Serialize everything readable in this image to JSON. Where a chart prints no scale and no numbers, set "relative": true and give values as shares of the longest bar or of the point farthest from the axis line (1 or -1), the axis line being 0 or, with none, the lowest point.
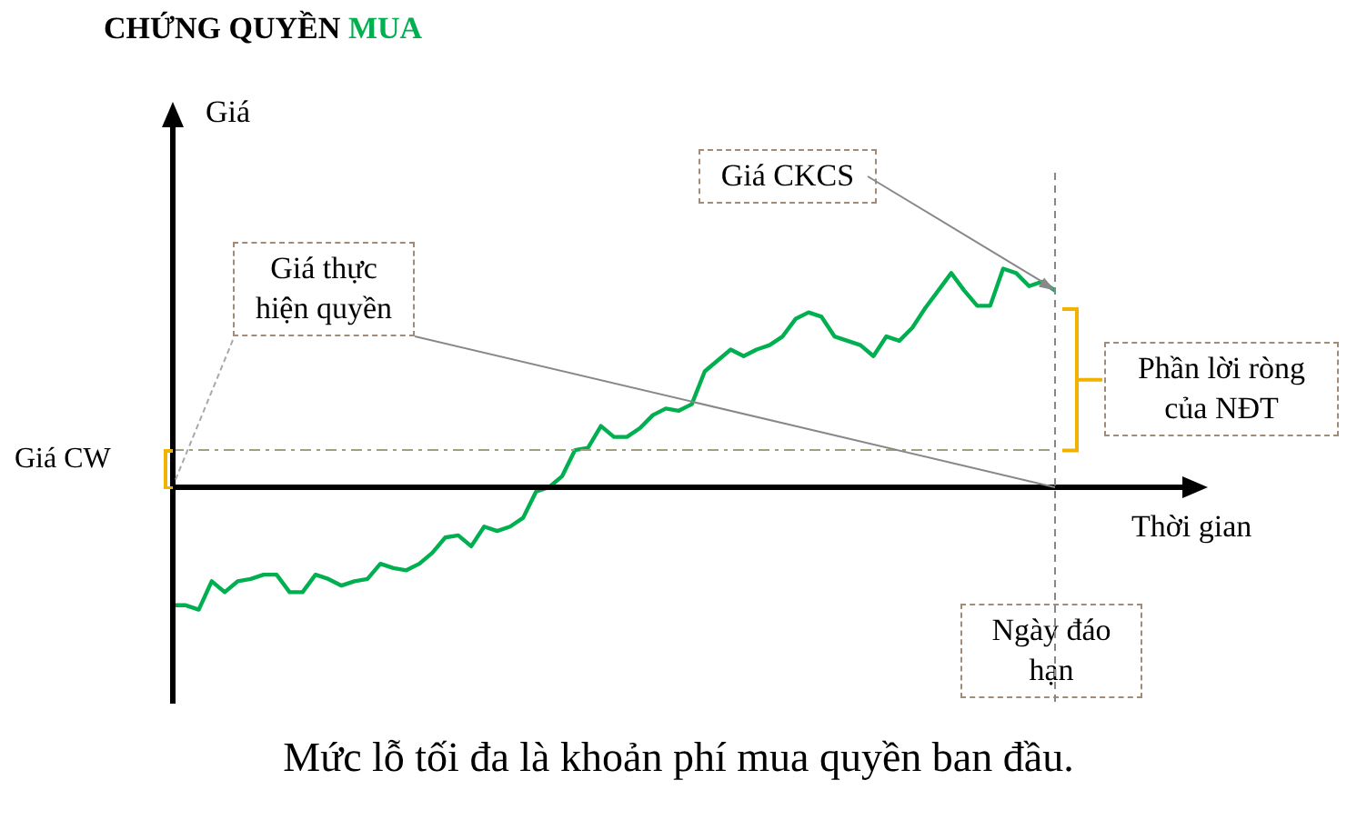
{
  "chart_data": {
    "type": "line",
    "title": "CHỨNG QUYỀN MUA",
    "xlabel": "Thời gian",
    "ylabel": "Giá",
    "relative": true,
    "legend": false,
    "marker": "none",
    "line_style": "solid",
    "categories": [
      null,
      null,
      null,
      null,
      null,
      null,
      null,
      null,
      null,
      null,
      null,
      null,
      null,
      null,
      null,
      null,
      null,
      null,
      null,
      null,
      null,
      null,
      null,
      null,
      null,
      null,
      null,
      null,
      null,
      null,
      null,
      null,
      null,
      null,
      null,
      null,
      null,
      null,
      null,
      null,
      null,
      null,
      null,
      null,
      null,
      null,
      null,
      null,
      null,
      null,
      null,
      null,
      null,
      null,
      null,
      null,
      null,
      null,
      null,
      null,
      null,
      null,
      null,
      null,
      null,
      null,
      null,
      null,
      null
    ],
    "series": [
      {
        "color": "#00b050",
        "values": [
          -0.54,
          -0.54,
          -0.56,
          -0.43,
          -0.48,
          -0.43,
          -0.42,
          -0.4,
          -0.4,
          -0.48,
          -0.48,
          -0.4,
          -0.42,
          -0.45,
          -0.43,
          -0.42,
          -0.35,
          -0.37,
          -0.38,
          -0.35,
          -0.3,
          -0.23,
          -0.22,
          -0.27,
          -0.18,
          -0.2,
          -0.18,
          -0.14,
          -0.02,
          0,
          0.05,
          0.17,
          0.18,
          0.28,
          0.23,
          0.23,
          0.27,
          0.33,
          0.36,
          0.35,
          0.38,
          0.53,
          0.58,
          0.63,
          0.6,
          0.63,
          0.65,
          0.69,
          0.77,
          0.8,
          0.78,
          0.69,
          0.67,
          0.65,
          0.6,
          0.69,
          0.67,
          0.73,
          0.82,
          0.9,
          0.98,
          0.9,
          0.83,
          0.83,
          1,
          0.98,
          0.92,
          0.94,
          0.9
        ]
      }
    ],
    "ref_lines": [
      {
        "axis": "y",
        "value": 0.17,
        "label": "Giá CW",
        "color": "#a0a080",
        "line_style": "dashed"
      }
    ],
    "annotations": [
      "Giá thực hiện quyền",
      "Giá CKCS",
      "Phần lời ròng của NĐT",
      "Ngày đáo hạn",
      "Mức lỗ tối đa là khoản phí mua quyền ban đầu."
    ]
  }
}
